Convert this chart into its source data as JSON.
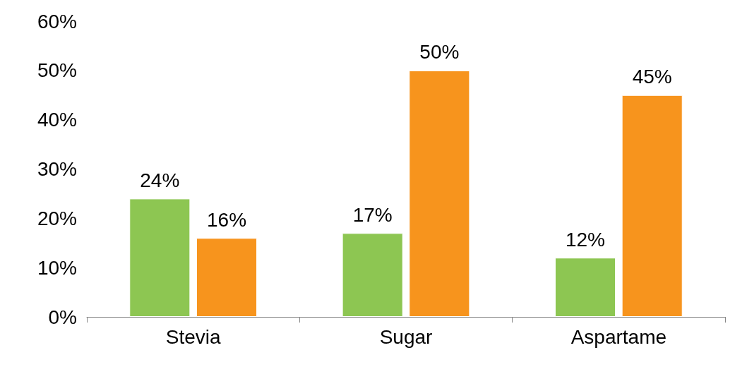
{
  "chart_data": {
    "type": "bar",
    "categories": [
      "Stevia",
      "Sugar",
      "Aspartame"
    ],
    "series": [
      {
        "color": "#8dc652",
        "values": [
          24,
          17,
          12
        ],
        "value_labels": [
          "24%",
          "17%",
          "12%"
        ]
      },
      {
        "color": "#f7941d",
        "values": [
          16,
          50,
          45
        ],
        "value_labels": [
          "16%",
          "50%",
          "45%"
        ]
      }
    ],
    "ylim": [
      0,
      60
    ],
    "yticks": [
      {
        "value": 0,
        "label": "0%"
      },
      {
        "value": 10,
        "label": "10%"
      },
      {
        "value": 20,
        "label": "20%"
      },
      {
        "value": 30,
        "label": "30%"
      },
      {
        "value": 40,
        "label": "40%"
      },
      {
        "value": 50,
        "label": "50%"
      },
      {
        "value": 60,
        "label": "60%"
      }
    ],
    "grid": false
  }
}
